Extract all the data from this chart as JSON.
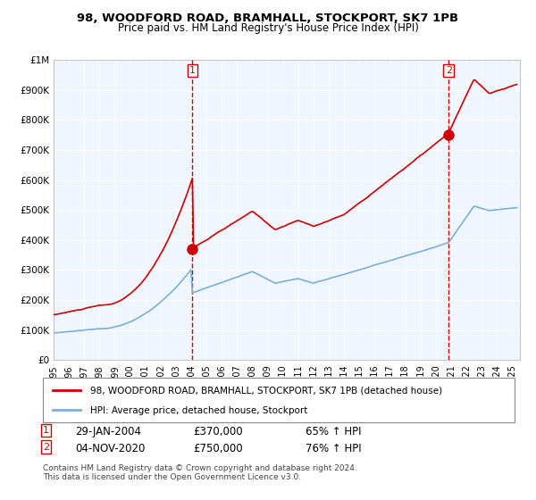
{
  "title1": "98, WOODFORD ROAD, BRAMHALL, STOCKPORT, SK7 1PB",
  "title2": "Price paid vs. HM Land Registry's House Price Index (HPI)",
  "legend_line1": "98, WOODFORD ROAD, BRAMHALL, STOCKPORT, SK7 1PB (detached house)",
  "legend_line2": "HPI: Average price, detached house, Stockport",
  "annotation1_label": "1",
  "annotation1_date": "29-JAN-2004",
  "annotation1_price": "£370,000",
  "annotation1_hpi": "65% ↑ HPI",
  "annotation2_label": "2",
  "annotation2_date": "04-NOV-2020",
  "annotation2_price": "£750,000",
  "annotation2_hpi": "76% ↑ HPI",
  "footnote": "Contains HM Land Registry data © Crown copyright and database right 2024.\nThis data is licensed under the Open Government Licence v3.0.",
  "red_line_color": "#cc0000",
  "blue_line_color": "#7ab0d4",
  "marker_color": "#cc0000",
  "vline_color": "#cc0000",
  "bg_color": "#dce9f5",
  "plot_bg": "#f0f6ff",
  "grid_color": "#ffffff",
  "outer_bg": "#ffffff",
  "anno_box_color": "#cc0000",
  "ylim": [
    0,
    1000000
  ],
  "yticks": [
    0,
    100000,
    200000,
    300000,
    400000,
    500000,
    600000,
    700000,
    800000,
    900000,
    1000000
  ],
  "sale1_x": 2004.08,
  "sale1_y": 370000,
  "sale2_x": 2020.84,
  "sale2_y": 750000,
  "xmin": 1995.0,
  "xmax": 2025.5
}
